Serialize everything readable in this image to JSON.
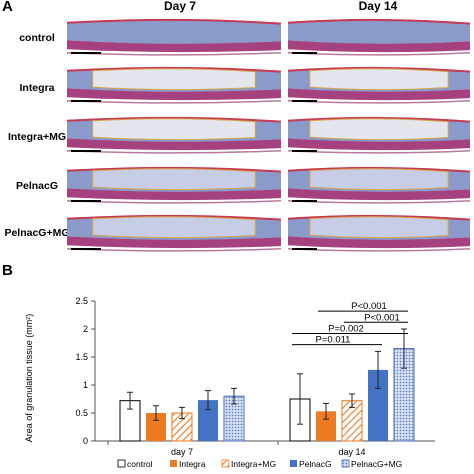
{
  "panel_a": {
    "letter": "A",
    "columns": [
      "Day 7",
      "Day 14"
    ],
    "rows": [
      "control",
      "Integra",
      "Integra+MG",
      "PelnacG",
      "PelnacG+MG"
    ]
  },
  "panel_b": {
    "letter": "B"
  },
  "chart_data": {
    "type": "bar",
    "title": "",
    "xlabel": "",
    "ylabel": "Area of granulation tissue (mm²)",
    "categories": [
      "day 7",
      "day 14"
    ],
    "ylim": [
      0,
      2.5
    ],
    "yticks": [
      "0",
      "0.5",
      "1",
      "1.5",
      "2",
      "2.5"
    ],
    "grid": false,
    "legend_position": "bottom",
    "series": [
      {
        "name": "control",
        "values": [
          0.72,
          0.75
        ],
        "errors": [
          0.15,
          0.45
        ],
        "color": "#ffffff",
        "pattern": "solid-white"
      },
      {
        "name": "Integra",
        "values": [
          0.5,
          0.53
        ],
        "errors": [
          0.13,
          0.14
        ],
        "color": "#ee7b22",
        "pattern": "solid"
      },
      {
        "name": "Integra+MG",
        "values": [
          0.5,
          0.72
        ],
        "errors": [
          0.1,
          0.12
        ],
        "color": "#ee7b22",
        "pattern": "hatched"
      },
      {
        "name": "PelnacG",
        "values": [
          0.73,
          1.27
        ],
        "errors": [
          0.17,
          0.33
        ],
        "color": "#4472c4",
        "pattern": "solid"
      },
      {
        "name": "PelnacG+MG",
        "values": [
          0.8,
          1.65
        ],
        "errors": [
          0.14,
          0.35
        ],
        "color": "#6f8fd6",
        "pattern": "dotted"
      }
    ],
    "annotations": [
      {
        "text": "P<0.001",
        "from": "Integra",
        "to": "PelnacG+MG",
        "group": "day 14"
      },
      {
        "text": "P<0.001",
        "from": "Integra+MG",
        "to": "PelnacG+MG",
        "group": "day 14"
      },
      {
        "text": "P=0.002",
        "from": "control",
        "to": "PelnacG+MG",
        "group": "day 14"
      },
      {
        "text": "P=0.011",
        "from": "control",
        "to": "PelnacG",
        "group": "day 14"
      }
    ]
  }
}
